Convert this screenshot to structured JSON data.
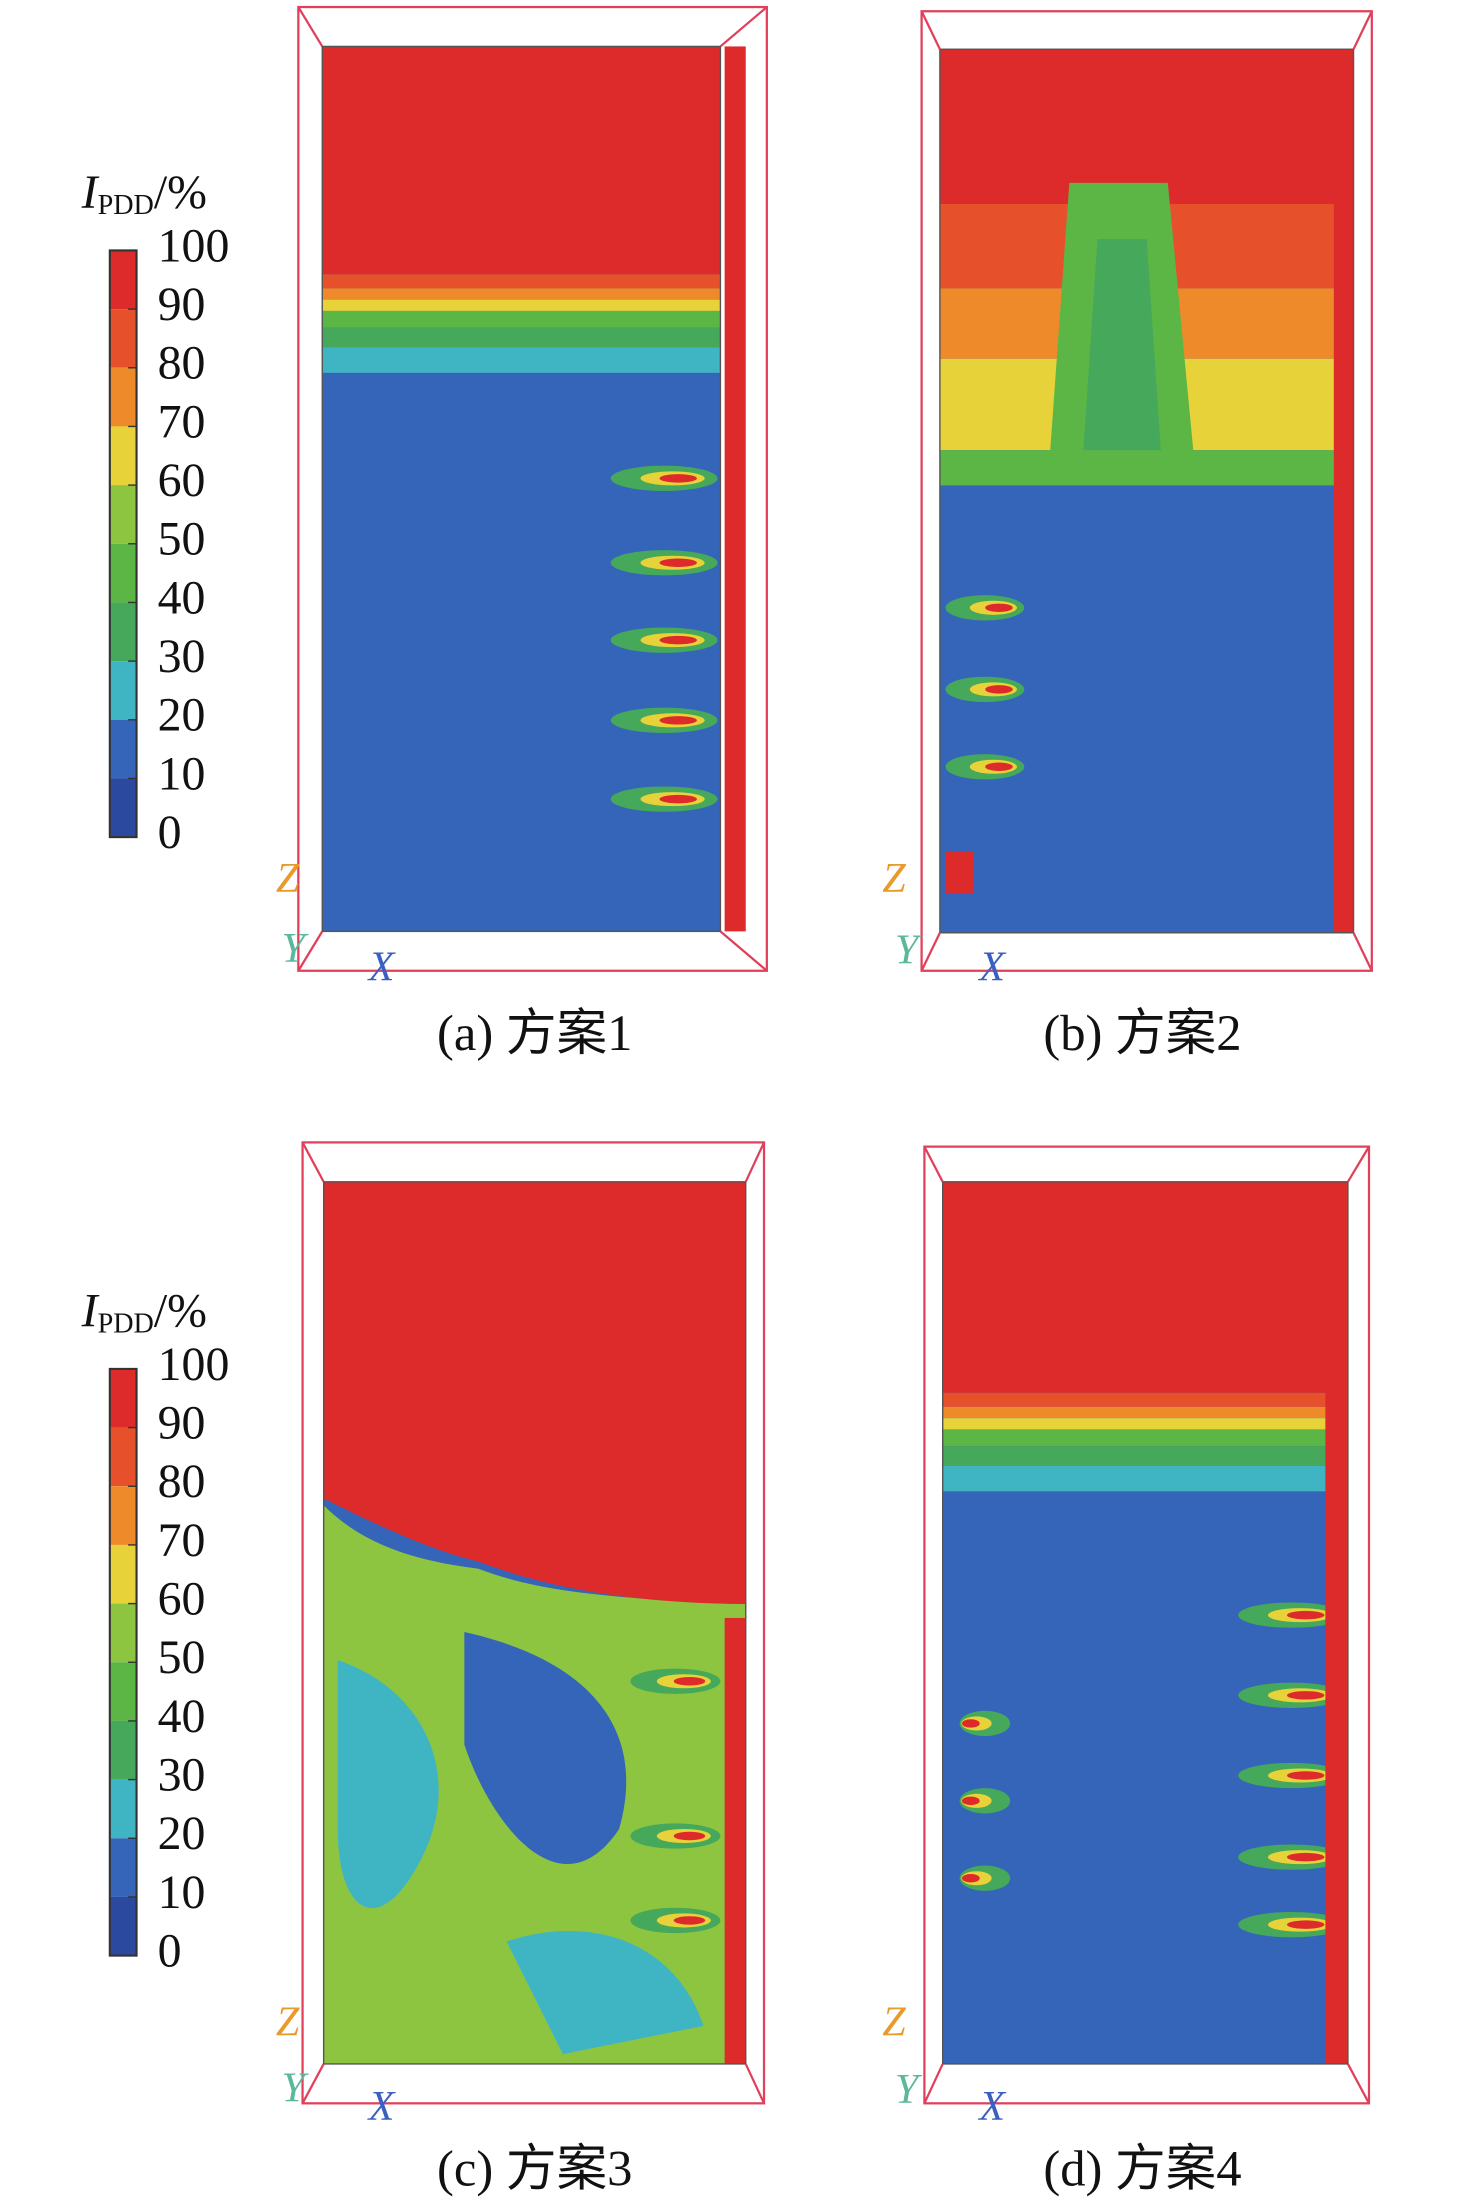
{
  "colorbars": [
    {
      "label": "I",
      "subscript": "PDD",
      "unit": "/%",
      "ticks": [
        100,
        90,
        80,
        70,
        60,
        50,
        40,
        30,
        20,
        10,
        0
      ]
    },
    {
      "label": "I",
      "subscript": "PDD",
      "unit": "/%",
      "ticks": [
        100,
        90,
        80,
        70,
        60,
        50,
        40,
        30,
        20,
        10,
        0
      ]
    }
  ],
  "panels": [
    {
      "caption": "(a) 方案1",
      "axes": {
        "z": "Z",
        "y": "Y",
        "x": "X"
      }
    },
    {
      "caption": "(b) 方案2",
      "axes": {
        "z": "Z",
        "y": "Y",
        "x": "X"
      }
    },
    {
      "caption": "(c) 方案3",
      "axes": {
        "z": "Z",
        "y": "Y",
        "x": "X"
      }
    },
    {
      "caption": "(d) 方案4",
      "axes": {
        "z": "Z",
        "y": "Y",
        "x": "X"
      }
    }
  ]
}
